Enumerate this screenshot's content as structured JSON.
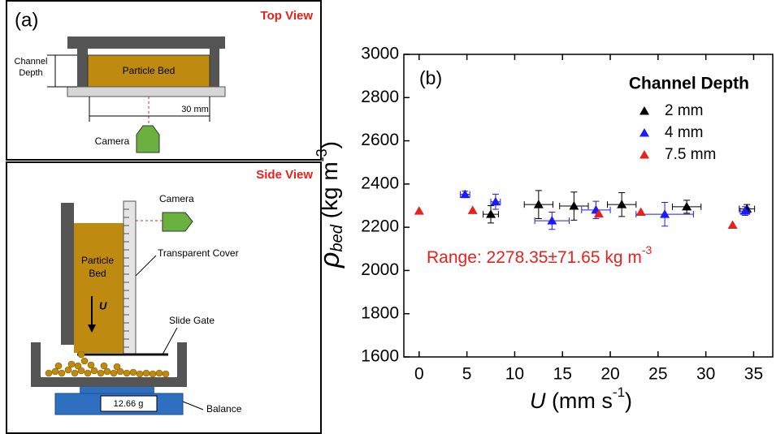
{
  "panel_a": {
    "label": "(a)",
    "top_view": {
      "title": "Top View",
      "depth_label": [
        "Channel",
        "Depth"
      ],
      "bed": "Particle Bed",
      "width": "30 mm",
      "camera": "Camera"
    },
    "side_view": {
      "title": "Side View",
      "camera": "Camera",
      "bed": [
        "Particle",
        "Bed"
      ],
      "cover": "Transparent Cover",
      "velocity": "U",
      "gate": "Slide Gate",
      "reading": "12.66 g",
      "balance": "Balance"
    }
  },
  "chart_data": {
    "type": "scatter",
    "panel_label": "(b)",
    "ylabel": {
      "symbol": "ρ",
      "subscript": "bed",
      "unit": " (kg m",
      "power": "-3",
      "close": ")"
    },
    "xlabel": {
      "symbol": "U",
      "unit": " (mm s",
      "power": "-1",
      "close": ")"
    },
    "annotation": {
      "text": "Range: 2278.35±71.65 kg m",
      "power": "-3",
      "color": "#e8211c"
    },
    "legend_title": "Channel Depth",
    "legend": "upper right",
    "xlim": [
      -1.6,
      37
    ],
    "xticks": [
      0,
      5,
      10,
      15,
      20,
      25,
      30,
      35
    ],
    "ylim": [
      1600,
      3000
    ],
    "yticks": [
      1600,
      1800,
      2000,
      2200,
      2400,
      2600,
      2800,
      3000
    ],
    "series": [
      {
        "name": "2 mm",
        "color": "#000000",
        "x": [
          7.5,
          12.5,
          16.2,
          21.2,
          28,
          34.3
        ],
        "values": [
          2260,
          2305,
          2298,
          2305,
          2295,
          2285
        ],
        "errors": [
          40,
          65,
          65,
          55,
          30,
          20
        ],
        "xerrors": [
          0.8,
          1.5,
          1.5,
          1.5,
          1.5,
          0.8
        ]
      },
      {
        "name": "4 mm",
        "color": "#1a1aff",
        "x": [
          4.8,
          8,
          13.9,
          18.5,
          25.7,
          34.1
        ],
        "values": [
          2352,
          2318,
          2230,
          2280,
          2260,
          2275
        ],
        "errors": [
          15,
          35,
          40,
          40,
          55,
          20
        ],
        "xerrors": [
          0.5,
          0.5,
          1.8,
          1.5,
          3,
          0.5
        ]
      },
      {
        "name": "7.5 mm",
        "color": "#e8211c",
        "x": [
          0,
          5.6,
          18.8,
          23.2,
          32.8
        ],
        "values": [
          2275,
          2278,
          2262,
          2270,
          2210
        ]
      }
    ]
  }
}
